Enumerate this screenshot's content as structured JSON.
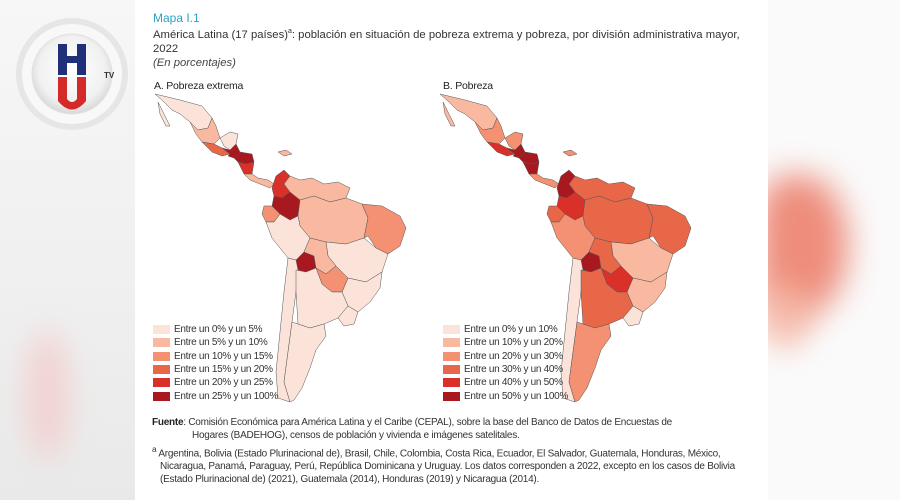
{
  "figure": {
    "map_label": "Mapa I.1",
    "title": "América Latina (17 países)",
    "title_sup": "a",
    "title_rest": ": población en situación de pobreza extrema y pobreza, por división administrativa mayor, 2022",
    "unit": "(En porcentajes)"
  },
  "logo": {
    "letters": [
      "H",
      "U"
    ],
    "tv": "TV",
    "colors": {
      "h": "#1f2f78",
      "u": "#d42a2a"
    }
  },
  "chart_data": [
    {
      "type": "choropleth",
      "title": "A. Pobreza extrema",
      "region": "América Latina",
      "unit": "%",
      "legend_placement": "bottom-left",
      "bins": [
        {
          "label": "Entre un 0% y un 5%",
          "range": [
            0,
            5
          ],
          "color": "#fbe3d9"
        },
        {
          "label": "Entre un 5% y un 10%",
          "range": [
            5,
            10
          ],
          "color": "#f9b9a0"
        },
        {
          "label": "Entre un 10% y un 15%",
          "range": [
            10,
            15
          ],
          "color": "#f39172"
        },
        {
          "label": "Entre un 15% y un 20%",
          "range": [
            15,
            20
          ],
          "color": "#e96749"
        },
        {
          "label": "Entre un 20% y un 25%",
          "range": [
            20,
            25
          ],
          "color": "#d9302a"
        },
        {
          "label": "Entre un 25% y un 100%",
          "range": [
            25,
            100
          ],
          "color": "#a8191f"
        }
      ],
      "regions": [
        {
          "name": "mexico-north",
          "bin": 0
        },
        {
          "name": "mexico-center",
          "bin": 1
        },
        {
          "name": "mexico-south",
          "bin": 3
        },
        {
          "name": "yucatan",
          "bin": 0
        },
        {
          "name": "guatemala",
          "bin": 5
        },
        {
          "name": "honduras",
          "bin": 5
        },
        {
          "name": "nicaragua",
          "bin": 4
        },
        {
          "name": "costa-rica-panama",
          "bin": 1
        },
        {
          "name": "caribbean",
          "bin": 1
        },
        {
          "name": "colombia-north",
          "bin": 4
        },
        {
          "name": "colombia-south",
          "bin": 5
        },
        {
          "name": "venezuela-guyanas",
          "bin": 1
        },
        {
          "name": "ecuador",
          "bin": 2
        },
        {
          "name": "brazil-amazon",
          "bin": 1
        },
        {
          "name": "brazil-northeast",
          "bin": 2
        },
        {
          "name": "brazil-center",
          "bin": 0
        },
        {
          "name": "brazil-south",
          "bin": 0
        },
        {
          "name": "peru",
          "bin": 0
        },
        {
          "name": "bolivia-west",
          "bin": 5
        },
        {
          "name": "bolivia-east",
          "bin": 1
        },
        {
          "name": "paraguay",
          "bin": 2
        },
        {
          "name": "chile",
          "bin": 0
        },
        {
          "name": "argentina-north",
          "bin": 0
        },
        {
          "name": "argentina-south",
          "bin": 0
        },
        {
          "name": "uruguay",
          "bin": 0
        }
      ]
    },
    {
      "type": "choropleth",
      "title": "B. Pobreza",
      "region": "América Latina",
      "unit": "%",
      "legend_placement": "bottom-left",
      "bins": [
        {
          "label": "Entre un 0% y un 10%",
          "range": [
            0,
            10
          ],
          "color": "#fbe3d9"
        },
        {
          "label": "Entre un 10% y un 20%",
          "range": [
            10,
            20
          ],
          "color": "#f9b9a0"
        },
        {
          "label": "Entre un 20% y un 30%",
          "range": [
            20,
            30
          ],
          "color": "#f39172"
        },
        {
          "label": "Entre un 30% y un 40%",
          "range": [
            30,
            40
          ],
          "color": "#e96749"
        },
        {
          "label": "Entre un 40% y un 50%",
          "range": [
            40,
            50
          ],
          "color": "#d9302a"
        },
        {
          "label": "Entre un 50% y un 100%",
          "range": [
            50,
            100
          ],
          "color": "#a8191f"
        }
      ],
      "regions": [
        {
          "name": "mexico-north",
          "bin": 1
        },
        {
          "name": "mexico-center",
          "bin": 2
        },
        {
          "name": "mexico-south",
          "bin": 4
        },
        {
          "name": "yucatan",
          "bin": 2
        },
        {
          "name": "guatemala",
          "bin": 5
        },
        {
          "name": "honduras",
          "bin": 5
        },
        {
          "name": "nicaragua",
          "bin": 5
        },
        {
          "name": "costa-rica-panama",
          "bin": 2
        },
        {
          "name": "caribbean",
          "bin": 2
        },
        {
          "name": "colombia-north",
          "bin": 5
        },
        {
          "name": "colombia-south",
          "bin": 4
        },
        {
          "name": "venezuela-guyanas",
          "bin": 3
        },
        {
          "name": "ecuador",
          "bin": 3
        },
        {
          "name": "brazil-amazon",
          "bin": 3
        },
        {
          "name": "brazil-northeast",
          "bin": 3
        },
        {
          "name": "brazil-center",
          "bin": 1
        },
        {
          "name": "brazil-south",
          "bin": 1
        },
        {
          "name": "peru",
          "bin": 2
        },
        {
          "name": "bolivia-west",
          "bin": 5
        },
        {
          "name": "bolivia-east",
          "bin": 3
        },
        {
          "name": "paraguay",
          "bin": 4
        },
        {
          "name": "chile",
          "bin": 0
        },
        {
          "name": "argentina-north",
          "bin": 3
        },
        {
          "name": "argentina-south",
          "bin": 2
        },
        {
          "name": "uruguay",
          "bin": 0
        }
      ]
    }
  ],
  "notes": {
    "source_label": "Fuente",
    "source_text": ": Comisión Económica para América Latina y el Caribe (CEPAL), sobre la base del Banco de Datos de Encuestas de",
    "source_text_cont": "Hogares (BADEHOG), censos de población y vivienda e imágenes satelitales.",
    "footnote_mark": "a",
    "footnote": "Argentina, Bolivia (Estado Plurinacional de), Brasil, Chile, Colombia, Costa Rica, Ecuador, El Salvador, Guatemala, Honduras, México, Nicaragua, Panamá, Paraguay, Perú, República Dominicana y Uruguay. Los datos corresponden a 2022, excepto en los casos de Bolivia (Estado Plurinacional de) (2021), Guatemala (2014), Honduras (2019) y Nicaragua (2014)."
  }
}
